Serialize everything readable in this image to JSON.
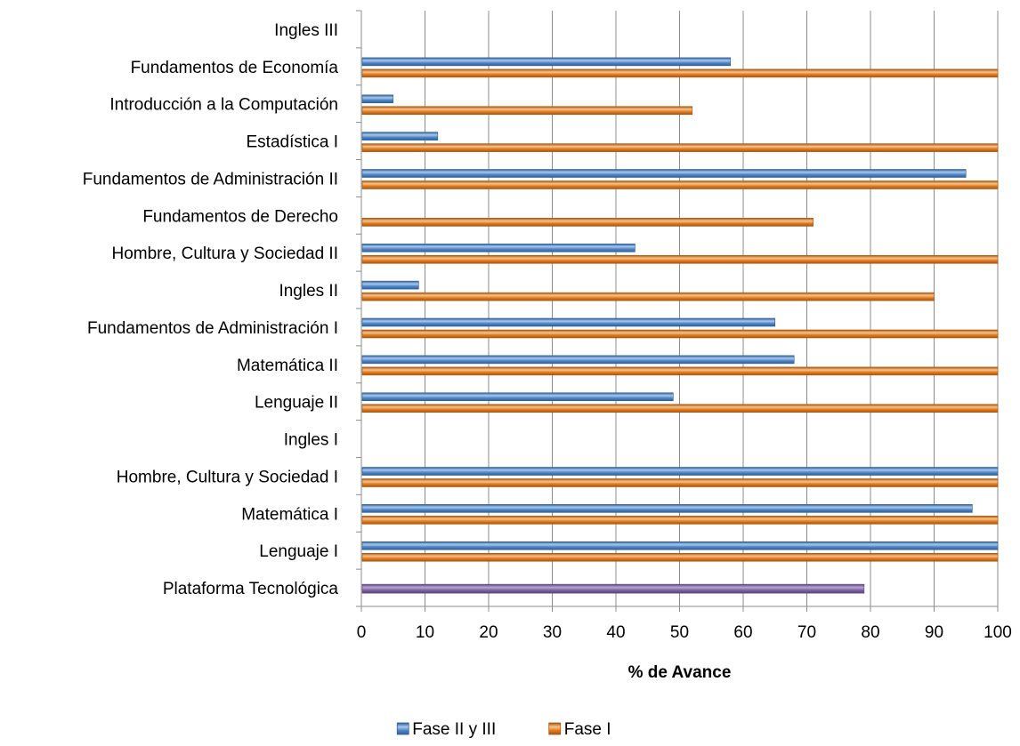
{
  "chart_data": {
    "type": "bar",
    "orientation": "horizontal",
    "categories": [
      "Plataforma Tecnológica",
      "Lenguaje I",
      "Matemática I",
      "Hombre, Cultura y Sociedad I",
      "Ingles I",
      "Lenguaje II",
      "Matemática II",
      "Fundamentos de Administración I",
      "Ingles II",
      "Hombre, Cultura y Sociedad II",
      "Fundamentos de Derecho",
      "Fundamentos de Administración II",
      "Estadística I",
      "Introducción a la Computación",
      "Fundamentos de Economía",
      "Ingles III"
    ],
    "series": [
      {
        "name": "Fase II y III",
        "color": "#4f86c6",
        "values": [
          null,
          100,
          96,
          100,
          null,
          49,
          68,
          65,
          9,
          43,
          null,
          95,
          12,
          5,
          58,
          null
        ]
      },
      {
        "name": "Fase I",
        "color": "#e07b1f",
        "values": [
          null,
          100,
          100,
          100,
          null,
          100,
          100,
          100,
          90,
          100,
          71,
          100,
          100,
          52,
          100,
          null
        ]
      }
    ],
    "single_values": [
      {
        "category": "Plataforma Tecnológica",
        "value": 79,
        "color": "#8064a2"
      }
    ],
    "xlabel": "% de Avance",
    "ylabel": "",
    "xlim": [
      0,
      100
    ],
    "xticks": [
      0,
      10,
      20,
      30,
      40,
      50,
      60,
      70,
      80,
      90,
      100
    ],
    "grid": true,
    "legend_position": "bottom"
  }
}
